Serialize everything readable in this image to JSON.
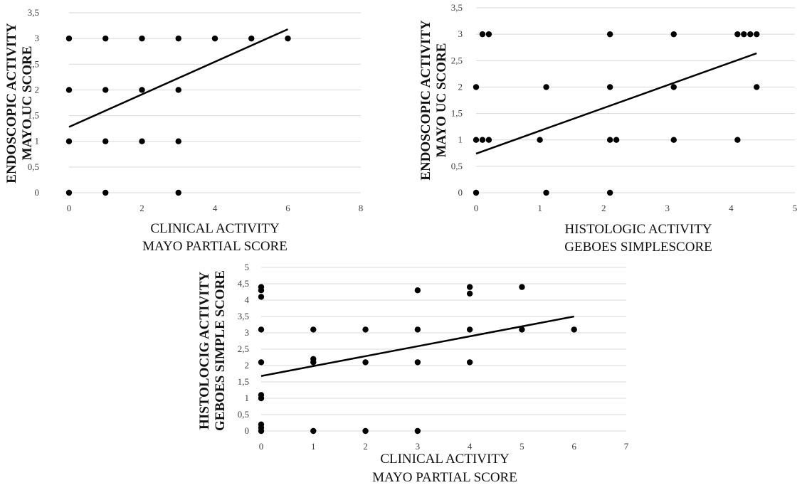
{
  "chart_data": [
    {
      "type": "scatter",
      "ylabel": [
        "ENDOSCOPIC ACTIVITY",
        "MAYO UC SCORE"
      ],
      "xlabel": [
        "CLINICAL ACTIVITY",
        "MAYO PARTIAL SCORE"
      ],
      "xlim": [
        0,
        8
      ],
      "ylim": [
        0,
        3.5
      ],
      "x_ticks": [
        "0",
        "2",
        "4",
        "6",
        "8"
      ],
      "y_ticks": [
        "0",
        "0,5",
        "1",
        "1,5",
        "2",
        "2,5",
        "3",
        "3,5"
      ],
      "grid": "horizontal",
      "points": [
        [
          0,
          3
        ],
        [
          1,
          3
        ],
        [
          2,
          3
        ],
        [
          3,
          3
        ],
        [
          4,
          3
        ],
        [
          5,
          3
        ],
        [
          6,
          3
        ],
        [
          0,
          2
        ],
        [
          1,
          2
        ],
        [
          2,
          2
        ],
        [
          3,
          2
        ],
        [
          0,
          1
        ],
        [
          1,
          1
        ],
        [
          2,
          1
        ],
        [
          3,
          1
        ],
        [
          0,
          0
        ],
        [
          1,
          0
        ],
        [
          3,
          0
        ]
      ],
      "trendline": [
        [
          0,
          1.28
        ],
        [
          6,
          3.18
        ]
      ]
    },
    {
      "type": "scatter",
      "ylabel": [
        "ENDOSCOPIC ACTIVITY",
        "MAYO UC SCORE"
      ],
      "xlabel": [
        "HISTOLOGIC ACTIVITY",
        "GEBOES SIMPLESCORE"
      ],
      "xlim": [
        0,
        5
      ],
      "ylim": [
        0,
        3.5
      ],
      "x_ticks": [
        "0",
        "1",
        "2",
        "3",
        "4",
        "5"
      ],
      "y_ticks": [
        "0",
        "0,5",
        "1",
        "1,5",
        "2",
        "2,5",
        "3",
        "3,5"
      ],
      "grid": "horizontal",
      "points": [
        [
          0.1,
          3
        ],
        [
          0.2,
          3
        ],
        [
          2.1,
          3
        ],
        [
          3.1,
          3
        ],
        [
          4.1,
          3
        ],
        [
          4.2,
          3
        ],
        [
          4.3,
          3
        ],
        [
          4.4,
          3
        ],
        [
          0,
          2
        ],
        [
          1.1,
          2
        ],
        [
          2.1,
          2
        ],
        [
          3.1,
          2
        ],
        [
          4.4,
          2
        ],
        [
          0,
          1
        ],
        [
          0.1,
          1
        ],
        [
          0.2,
          1
        ],
        [
          1.0,
          1
        ],
        [
          2.1,
          1
        ],
        [
          2.2,
          1
        ],
        [
          3.1,
          1
        ],
        [
          4.1,
          1
        ],
        [
          0,
          0
        ],
        [
          1.1,
          0
        ],
        [
          2.1,
          0
        ]
      ],
      "trendline": [
        [
          0,
          0.74
        ],
        [
          4.4,
          2.64
        ]
      ]
    },
    {
      "type": "scatter",
      "ylabel": [
        "HISTOLOCIG ACTIVITY",
        "GEBOES SIMPLE SCORE"
      ],
      "xlabel": [
        "CLINICAL ACTIVITY",
        "MAYO PARTIAL SCORE"
      ],
      "xlim": [
        0,
        7
      ],
      "ylim": [
        0,
        5
      ],
      "x_ticks": [
        "0",
        "1",
        "2",
        "3",
        "4",
        "5",
        "6",
        "7"
      ],
      "y_ticks": [
        "0",
        "0,5",
        "1",
        "1,5",
        "2",
        "2,5",
        "3",
        "3,5",
        "4",
        "4,5",
        "5"
      ],
      "grid": "horizontal",
      "points": [
        [
          0,
          4.4
        ],
        [
          0,
          4.3
        ],
        [
          0,
          4.1
        ],
        [
          0,
          3.1
        ],
        [
          0,
          2.1
        ],
        [
          0,
          1.1
        ],
        [
          0,
          1.0
        ],
        [
          0,
          0.2
        ],
        [
          0,
          0.1
        ],
        [
          0,
          0
        ],
        [
          1,
          3.1
        ],
        [
          1,
          2.2
        ],
        [
          1,
          2.1
        ],
        [
          1,
          0
        ],
        [
          2,
          3.1
        ],
        [
          2,
          2.1
        ],
        [
          2,
          0
        ],
        [
          3,
          4.3
        ],
        [
          3,
          3.1
        ],
        [
          3,
          2.1
        ],
        [
          3,
          0
        ],
        [
          4,
          4.4
        ],
        [
          4,
          4.2
        ],
        [
          4,
          3.1
        ],
        [
          4,
          2.1
        ],
        [
          5,
          4.4
        ],
        [
          5,
          3.1
        ],
        [
          6,
          3.1
        ]
      ],
      "trendline": [
        [
          0,
          1.68
        ],
        [
          6,
          3.5
        ]
      ]
    }
  ]
}
